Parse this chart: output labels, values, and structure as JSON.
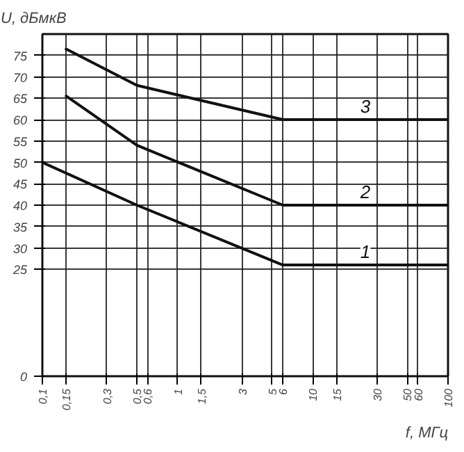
{
  "chart_data": {
    "type": "line",
    "xlabel": "f, МГц",
    "ylabel": "U, дБмкВ",
    "log": "x",
    "xlim": [
      0.1,
      100
    ],
    "ylim": [
      0,
      80
    ],
    "xticks": [
      {
        "value": 0.1,
        "label": "0,1"
      },
      {
        "value": 0.15,
        "label": "0,15"
      },
      {
        "value": 0.3,
        "label": "0,3"
      },
      {
        "value": 0.5,
        "label": "0,5"
      },
      {
        "value": 0.6,
        "label": "0,6"
      },
      1,
      {
        "value": 1.5,
        "label": "1,5"
      },
      3,
      5,
      6,
      10,
      15,
      30,
      50,
      60,
      100
    ],
    "yticks": [
      0,
      25,
      30,
      35,
      40,
      45,
      50,
      55,
      60,
      65,
      70,
      75
    ],
    "grid": true,
    "line_style": "solid",
    "marker": "none",
    "series": [
      {
        "name": "1",
        "color": "#111111",
        "x": [
          0.1,
          0.5,
          6,
          100
        ],
        "values": [
          50,
          40,
          26,
          26
        ]
      },
      {
        "name": "2",
        "color": "#111111",
        "x": [
          0.15,
          0.5,
          6,
          100
        ],
        "values": [
          65.5,
          54,
          40,
          40
        ]
      },
      {
        "name": "3",
        "color": "#111111",
        "x": [
          0.15,
          0.5,
          6,
          100
        ],
        "values": [
          76.5,
          68,
          60,
          60
        ]
      }
    ]
  }
}
